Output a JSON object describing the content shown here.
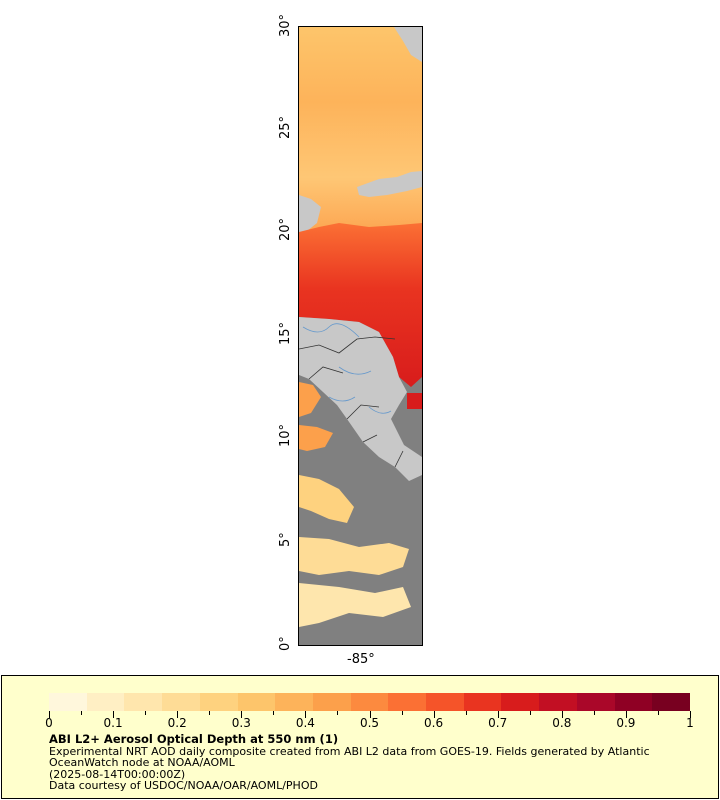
{
  "map": {
    "lat_ticks": [
      "0°",
      "5°",
      "10°",
      "15°",
      "20°",
      "25°",
      "30°"
    ],
    "lon_ticks": [
      "-85°"
    ],
    "colors": {
      "land": "#c8c8c8",
      "ocean_missing": "#808080",
      "country_border": "#333333",
      "state_border": "#555555",
      "rivers": "#6699cc"
    }
  },
  "legend": {
    "colorbar_colors": [
      "#fff7dc",
      "#ffefc4",
      "#ffe6ad",
      "#fedc96",
      "#fed27f",
      "#fdc56b",
      "#fdb35a",
      "#fca04b",
      "#fc8a3f",
      "#fb7034",
      "#f55429",
      "#e93420",
      "#d81c1c",
      "#c20f23",
      "#aa0729",
      "#8f0024",
      "#780020"
    ],
    "ticks": [
      "0",
      "0.1",
      "0.2",
      "0.3",
      "0.4",
      "0.5",
      "0.6",
      "0.7",
      "0.8",
      "0.9",
      "1"
    ],
    "title": "ABI L2+ Aerosol Optical Depth at 550 nm (1)",
    "line1": "Experimental NRT AOD daily composite created from ABI L2 data from GOES-19. Fields generated by Atlantic OceanWatch node at NOAA/AOML",
    "line2": "(2025-08-14T00:00:00Z)",
    "line3": "Data courtesy of USDOC/NOAA/OAR/AOML/PHOD"
  }
}
